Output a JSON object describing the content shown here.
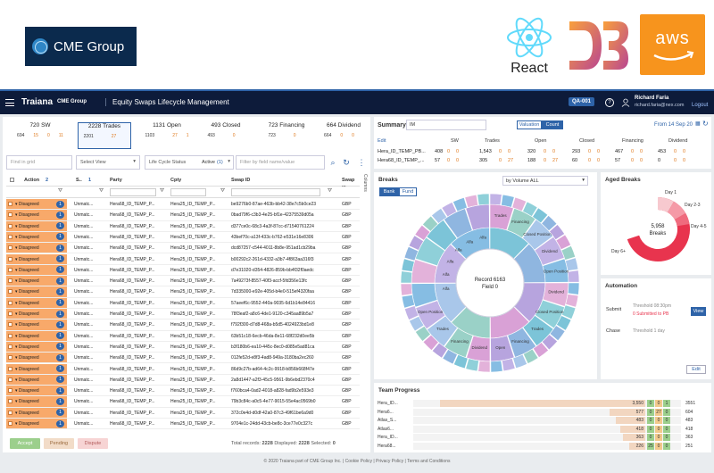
{
  "logos": {
    "cme": "CME Group",
    "react": "React",
    "aws": "aws"
  },
  "topbar": {
    "brand": "Traiana",
    "brand_suffix": "CME Group",
    "title": "Equity Swaps Lifecycle Management",
    "env": "QA-001",
    "help": "?",
    "user_name": "Richard Faria",
    "user_email": "richard.faria@nex.com",
    "logout": "Logout"
  },
  "stats": [
    {
      "title": "720 SW",
      "a": "694",
      "b": "15",
      "c": "0",
      "d": "11"
    },
    {
      "title": "2228 Trades",
      "a": "2201",
      "b": "",
      "c": "27",
      "d": ""
    },
    {
      "title": "1131 Open",
      "a": "1103",
      "b": "",
      "c": "27",
      "d": "1"
    },
    {
      "title": "493 Closed",
      "a": "493",
      "b": "",
      "c": "0",
      "d": ""
    },
    {
      "title": "723 Financing",
      "a": "723",
      "b": "",
      "c": "0",
      "d": ""
    },
    {
      "title": "664 Dividend",
      "a": "664",
      "b": "0",
      "c": "0",
      "d": ""
    }
  ],
  "toolbar": {
    "find_placeholder": "Find in grid",
    "select_view": "Select View",
    "lifecycle": "Life Cycle Status",
    "active": "Active",
    "active_count": "(1)",
    "filter_placeholder": "Filter by field name/value"
  },
  "grid": {
    "headers": [
      "Action",
      "2",
      "S..",
      "1",
      "Party",
      "Cpty",
      "Swap ID",
      "Swap ..."
    ],
    "columns_label": "Columns",
    "rows": [
      {
        "status": "Disagreed",
        "num": "1",
        "s": "Unmatc...",
        "party": "Hera68_ID_TEMP_P...",
        "cpty": "Hera25_ID_TEMP_P...",
        "swap": "be9276b0-87ae-463b-bb42-38e7c5b0ce23",
        "ccy": "GBP"
      },
      {
        "status": "Disagreed",
        "num": "1",
        "s": "Unmatc...",
        "party": "Hera68_ID_TEMP_P...",
        "cpty": "Hera25_ID_TEMP_P...",
        "swap": "0bad79f6-c3b3-4e25-bf1e-42375539d05a",
        "ccy": "GBP"
      },
      {
        "status": "Disagreed",
        "num": "1",
        "s": "Unmatc...",
        "party": "Hera68_ID_TEMP_P...",
        "cpty": "Hera25_ID_TEMP_P...",
        "swap": "d377ce0c-68c3-4a3f-87cc-d71540761224",
        "ccy": "GBP"
      },
      {
        "status": "Disagreed",
        "num": "1",
        "s": "Unmatc...",
        "party": "Hera68_ID_TEMP_P...",
        "cpty": "Hera25_ID_TEMP_P...",
        "swap": "43bef70c-a13f-433c-b762-e531e16e8306",
        "ccy": "GBP"
      },
      {
        "status": "Disagreed",
        "num": "1",
        "s": "Unmatc...",
        "party": "Hera68_ID_TEMP_P...",
        "cpty": "Hera25_ID_TEMP_P...",
        "swap": "dcd87257-c544-4011-8b8e-951ad1cb29ba",
        "ccy": "GBP"
      },
      {
        "status": "Disagreed",
        "num": "1",
        "s": "Unmatc...",
        "party": "Hera68_ID_TEMP_P...",
        "cpty": "Hera25_ID_TEMP_P...",
        "swap": "b00292c2-261d-4332-a3b7-4f863aa316f3",
        "ccy": "GBP"
      },
      {
        "status": "Disagreed",
        "num": "1",
        "s": "Unmatc...",
        "party": "Hera68_ID_TEMP_P...",
        "cpty": "Hera25_ID_TEMP_P...",
        "swap": "d7e31020-d354-4826-859b-bb4f32f0aedc",
        "ccy": "GBP"
      },
      {
        "status": "Disagreed",
        "num": "1",
        "s": "Unmatc...",
        "party": "Hera68_ID_TEMP_P...",
        "cpty": "Hera25_ID_TEMP_P...",
        "swap": "7a49273f-8557-40f3-accf-5fd356e13fc",
        "ccy": "GBP"
      },
      {
        "status": "Disagreed",
        "num": "1",
        "s": "Unmatc...",
        "party": "Hera68_ID_TEMP_P...",
        "cpty": "Hera25_ID_TEMP_P...",
        "swap": "7d335000-e92e-405d-b4e0-515ef4320faa",
        "ccy": "GBP"
      },
      {
        "status": "Disagreed",
        "num": "1",
        "s": "Unmatc...",
        "party": "Hera68_ID_TEMP_P...",
        "cpty": "Hera25_ID_TEMP_P...",
        "swap": "57aeef6c-9552-440a-9035-6d1b14e84416",
        "ccy": "GBP"
      },
      {
        "status": "Disagreed",
        "num": "1",
        "s": "Unmatc...",
        "party": "Hera68_ID_TEMP_P...",
        "cpty": "Hera25_ID_TEMP_P...",
        "swap": "78f3eaf2-a8c6-4de1-9120-c345aa89b5a7",
        "ccy": "GBP"
      },
      {
        "status": "Disagreed",
        "num": "1",
        "s": "Unmatc...",
        "party": "Hera68_ID_TEMP_P...",
        "cpty": "Hera25_ID_TEMP_P...",
        "swap": "f792f300-d7d8-468a-b5d5-4024923bd1e8",
        "ccy": "GBP"
      },
      {
        "status": "Disagreed",
        "num": "1",
        "s": "Unmatc...",
        "party": "Hera68_ID_TEMP_P...",
        "cpty": "Hera25_ID_TEMP_P...",
        "swap": "63b51c18-6ecb-46da-8e11-68f232d0ee5b",
        "ccy": "GBP"
      },
      {
        "status": "Disagreed",
        "num": "1",
        "s": "Unmatc...",
        "party": "Hera68_ID_TEMP_P...",
        "cpty": "Hera25_ID_TEMP_P...",
        "swap": "b3f180b6-ea10-445c-8ec0-d085e5ad81ca",
        "ccy": "GBP"
      },
      {
        "status": "Disagreed",
        "num": "1",
        "s": "Unmatc...",
        "party": "Hera68_ID_TEMP_P...",
        "cpty": "Hera25_ID_TEMP_P...",
        "swap": "012fe52d-e8f3-4ad8-949a-3180ba2ec260",
        "ccy": "GBP"
      },
      {
        "status": "Disagreed",
        "num": "1",
        "s": "Unmatc...",
        "party": "Hera68_ID_TEMP_P...",
        "cpty": "Hera25_ID_TEMP_P...",
        "swap": "86d9c27b-ad64-4c2c-9918-b856b668f47e",
        "ccy": "GBP"
      },
      {
        "status": "Disagreed",
        "num": "1",
        "s": "Unmatc...",
        "party": "Hera68_ID_TEMP_P...",
        "cpty": "Hera25_ID_TEMP_P...",
        "swap": "2a8d1447-a2f3-45c5-9561-9b6ebd2370c4",
        "ccy": "GBP"
      },
      {
        "status": "Disagreed",
        "num": "1",
        "s": "Unmatc...",
        "party": "Hera68_ID_TEMP_P...",
        "cpty": "Hera25_ID_TEMP_P...",
        "swap": "f760bca4-0ad2-4018-a828-fad9b2e593e3",
        "ccy": "GBP"
      },
      {
        "status": "Disagreed",
        "num": "1",
        "s": "Unmatc...",
        "party": "Hera68_ID_TEMP_P...",
        "cpty": "Hera25_ID_TEMP_P...",
        "swap": "79b3c84c-a0c5-4e77-9015-55e4ac0569b0",
        "ccy": "GBP"
      },
      {
        "status": "Disagreed",
        "num": "1",
        "s": "Unmatc...",
        "party": "Hera68_ID_TEMP_P...",
        "cpty": "Hera25_ID_TEMP_P...",
        "swap": "372c0e4d-d0df-42a0-87c3-49f61be6a9d0",
        "ccy": "GBP"
      },
      {
        "status": "Disagreed",
        "num": "1",
        "s": "Unmatc...",
        "party": "Hera68_ID_TEMP_P...",
        "cpty": "Hera25_ID_TEMP_P...",
        "swap": "9704e1c-24dd-43cb-be8c-3ce77e0c327c",
        "ccy": "GBP"
      }
    ]
  },
  "footer": {
    "accept": "Accept",
    "pending": "Pending",
    "dispute": "Dispute",
    "total_label": "Total records:",
    "total": "2228",
    "displayed_label": "Displayed:",
    "displayed": "2228",
    "selected_label": "Selected:",
    "selected": "0"
  },
  "summary": {
    "title": "Summary",
    "im": "IM",
    "valuation": "Valuation",
    "count": "Count",
    "date_range": "From 14 Sep 20",
    "edit": "Edit",
    "headers": [
      "SW",
      "Trades",
      "Open",
      "Closed",
      "Financing",
      "Dividend"
    ],
    "rows": [
      {
        "name": "Hera_ID_TEMP_PB...",
        "vals": [
          "408",
          "0",
          "0",
          "1,543",
          "0",
          "0",
          "320",
          "0",
          "0",
          "293",
          "0",
          "0",
          "467",
          "0",
          "0",
          "453",
          "0",
          "0"
        ]
      },
      {
        "name": "Hera68_ID_TEMP_...",
        "vals": [
          "57",
          "0",
          "0",
          "305",
          "0",
          "27",
          "188",
          "0",
          "27",
          "60",
          "0",
          "0",
          "57",
          "0",
          "0",
          "0",
          "0",
          "0"
        ]
      }
    ]
  },
  "breaks": {
    "title": "Breaks",
    "volume": "by Volume ALL",
    "bank": "Bank",
    "fund": "Fund",
    "center_record": "Record 6163",
    "center_field": "Field 0",
    "labels": [
      "Trades",
      "Financing",
      "Closed Position",
      "Dividend",
      "Open Position",
      "Dividend",
      "Closed Position",
      "Trades",
      "Financing",
      "Open",
      "Dividend",
      "Financing",
      "Trades",
      "Open Position",
      "Alfa",
      "Alfa",
      "Alfa",
      "Alfa",
      "Alfa",
      "Alfa"
    ]
  },
  "aged": {
    "title": "Aged Breaks",
    "center_value": "5,958",
    "center_label": "Breaks",
    "labels": [
      "Day 1",
      "Day 2-3",
      "Day 4-5",
      "Day 6+"
    ]
  },
  "automation": {
    "title": "Automation",
    "submit": "Submit",
    "submit_threshold": "Threshold 08:30pm",
    "submit_status": "0 Submitted to PB",
    "view": "View",
    "chase": "Chase",
    "chase_threshold": "Threshold 1 day",
    "edit": "Edit"
  },
  "team": {
    "title": "Team Progress",
    "rows": [
      {
        "name": "Hera_ID...",
        "left": "3,550",
        "m1": "0",
        "m2": "0",
        "m3": "1",
        "right": "3551"
      },
      {
        "name": "Hera6...",
        "left": "577",
        "m1": "0",
        "m2": "27",
        "m3": "0",
        "right": "604"
      },
      {
        "name": "Atlas_S...",
        "left": "483",
        "m1": "0",
        "m2": "0",
        "m3": "0",
        "right": "483"
      },
      {
        "name": "Atlas6...",
        "left": "418",
        "m1": "0",
        "m2": "0",
        "m3": "0",
        "right": "418"
      },
      {
        "name": "Hera_ID...",
        "left": "363",
        "m1": "0",
        "m2": "0",
        "m3": "0",
        "right": "363"
      },
      {
        "name": "Hera68...",
        "left": "226",
        "m1": "25",
        "m2": "0",
        "m3": "0",
        "right": "251"
      }
    ]
  },
  "copyright": "© 2020 Traiana part of CME Group Inc.  |  Cookie Policy  |  Privacy Policy  |  Terms and Conditions",
  "colors": {
    "topbar": "#0d1b3a",
    "accent": "#2e63a8",
    "disagreed": "#f8a96a",
    "aged": "#e8344e"
  }
}
